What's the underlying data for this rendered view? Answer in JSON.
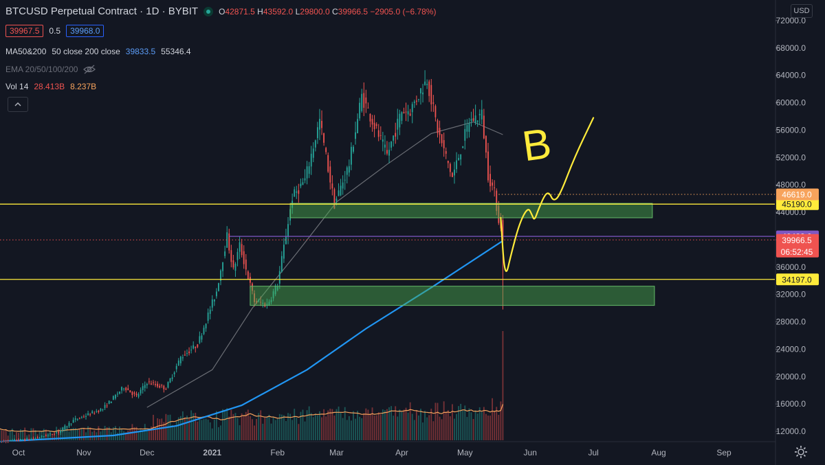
{
  "header": {
    "title": "BTCUSD Perpetual Contract · 1D · BYBIT",
    "open_label": "O",
    "open": "42871.5",
    "high_label": "H",
    "high": "43592.0",
    "low_label": "L",
    "low": "29800.0",
    "close_label": "C",
    "close": "39966.5",
    "change": "−2905.0 (−6.78%)",
    "bid": "39967.5",
    "spread": "0.5",
    "ask": "39968.0"
  },
  "indicators": {
    "ma_title": "MA50&200",
    "ma_params": "50 close 200 close",
    "ma_value1": "39833.5",
    "ma_value2": "55346.4",
    "ema_title": "EMA 20/50/100/200",
    "vol_title": "Vol 14",
    "vol_value1": "28.413B",
    "vol_value2": "8.237B"
  },
  "currency_label": "USD",
  "colors": {
    "background": "#131722",
    "up": "#26a69a",
    "down": "#ef5350",
    "ma50": "#6b6e75",
    "ma200": "#2196f3",
    "annotation": "#ffeb3b",
    "zone_fill": "#4caf50",
    "level_purple": "#7e57c2",
    "vol_ma": "#f7a35c"
  },
  "chart_data": {
    "type": "candlestick",
    "symbol": "BTCUSD",
    "interval": "1D",
    "exchange": "BYBIT",
    "ylim": [
      10600,
      74000
    ],
    "y_ticks": [
      72000,
      68000,
      64000,
      60000,
      56000,
      52000,
      48000,
      44000,
      40000,
      36000,
      32000,
      28000,
      24000,
      20000,
      16000,
      12000
    ],
    "y_tick_labels": [
      "72000.0",
      "68000.0",
      "64000.0",
      "60000.0",
      "56000.0",
      "52000.0",
      "48000.0",
      "44000.0",
      "40000.0",
      "36000.0",
      "32000.0",
      "28000.0",
      "24000.0",
      "20000.0",
      "16000.0",
      "12000.0"
    ],
    "x_labels": [
      "Oct",
      "Nov",
      "Dec",
      "2021",
      "Feb",
      "Mar",
      "Apr",
      "May",
      "Jun",
      "Jul",
      "Aug",
      "Sep"
    ],
    "x_label_dates": [
      "2020-10-01",
      "2020-11-01",
      "2020-12-01",
      "2021-01-01",
      "2021-02-01",
      "2021-03-01",
      "2021-04-01",
      "2021-05-01",
      "2021-06-01",
      "2021-07-01",
      "2021-08-01",
      "2021-09-01"
    ],
    "price_path": [
      [
        "2020-09-22",
        10500
      ],
      [
        "2020-10-08",
        10900
      ],
      [
        "2020-10-20",
        11900
      ],
      [
        "2020-10-27",
        13600
      ],
      [
        "2020-11-10",
        15300
      ],
      [
        "2020-11-20",
        18500
      ],
      [
        "2020-11-26",
        17100
      ],
      [
        "2020-12-01",
        19200
      ],
      [
        "2020-12-10",
        18300
      ],
      [
        "2020-12-17",
        22800
      ],
      [
        "2020-12-25",
        24700
      ],
      [
        "2021-01-03",
        32500
      ],
      [
        "2021-01-08",
        40500
      ],
      [
        "2021-01-11",
        35500
      ],
      [
        "2021-01-14",
        39200
      ],
      [
        "2021-01-21",
        31000
      ],
      [
        "2021-01-27",
        30500
      ],
      [
        "2021-02-01",
        33500
      ],
      [
        "2021-02-08",
        46200
      ],
      [
        "2021-02-14",
        48700
      ],
      [
        "2021-02-21",
        57400
      ],
      [
        "2021-02-28",
        45200
      ],
      [
        "2021-03-07",
        51000
      ],
      [
        "2021-03-13",
        61000
      ],
      [
        "2021-03-25",
        52300
      ],
      [
        "2021-04-01",
        58800
      ],
      [
        "2021-04-05",
        58900
      ],
      [
        "2021-04-13",
        63500
      ],
      [
        "2021-04-18",
        56000
      ],
      [
        "2021-04-25",
        49100
      ],
      [
        "2021-05-03",
        57300
      ],
      [
        "2021-05-09",
        58300
      ],
      [
        "2021-05-12",
        49500
      ],
      [
        "2021-05-15",
        46800
      ],
      [
        "2021-05-17",
        43000
      ],
      [
        "2021-05-19",
        39966.5
      ]
    ],
    "ma50_path": [
      [
        "2020-12-01",
        15500
      ],
      [
        "2021-01-01",
        21000
      ],
      [
        "2021-01-20",
        30000
      ],
      [
        "2021-02-10",
        38000
      ],
      [
        "2021-03-01",
        45500
      ],
      [
        "2021-03-25",
        51000
      ],
      [
        "2021-04-15",
        55500
      ],
      [
        "2021-05-05",
        57200
      ],
      [
        "2021-05-19",
        55346.4
      ]
    ],
    "ma200_path": [
      [
        "2020-09-22",
        10500
      ],
      [
        "2020-11-15",
        11400
      ],
      [
        "2020-12-15",
        12800
      ],
      [
        "2021-01-15",
        15800
      ],
      [
        "2021-02-15",
        21000
      ],
      [
        "2021-03-15",
        27000
      ],
      [
        "2021-04-15",
        33000
      ],
      [
        "2021-05-19",
        39833.5
      ]
    ],
    "zones": [
      {
        "from": "2021-02-07",
        "to": "2021-07-29",
        "y_low": 43200,
        "y_high": 45300
      },
      {
        "from": "2021-01-19",
        "to": "2021-07-30",
        "y_low": 30400,
        "y_high": 33200
      }
    ],
    "horizontal_levels": [
      {
        "value": 45190.0,
        "label": "45190.0",
        "style": "solid",
        "color": "#ffeb3b"
      },
      {
        "value": 34197.0,
        "label": "34197.0",
        "style": "solid",
        "color": "#ffeb3b"
      },
      {
        "value": 46619.0,
        "label": "46619.0",
        "style": "dotted",
        "color": "#f7a35c",
        "from": "2021-05-17"
      },
      {
        "value": 40482.0,
        "label": "40482.0",
        "style": "solid",
        "color": "#7e57c2",
        "from": "2021-01-09"
      },
      {
        "value": 39966.5,
        "label": "39966.5",
        "style": "dotted",
        "color": "#ef5350",
        "sublabel": "06:52:45"
      }
    ],
    "drawing_path": [
      [
        "2021-05-18",
        43200
      ],
      [
        "2021-05-20",
        34000
      ],
      [
        "2021-05-23",
        38000
      ],
      [
        "2021-05-27",
        42500
      ],
      [
        "2021-05-31",
        44800
      ],
      [
        "2021-06-02",
        43500
      ],
      [
        "2021-06-03",
        42800
      ],
      [
        "2021-06-05",
        44500
      ],
      [
        "2021-06-08",
        46600
      ],
      [
        "2021-06-10",
        46900
      ],
      [
        "2021-06-12",
        45600
      ],
      [
        "2021-06-15",
        46400
      ],
      [
        "2021-06-22",
        52000
      ],
      [
        "2021-07-01",
        57800
      ]
    ],
    "drawing_text": "B",
    "volume_max": 28.413,
    "volume_last": 28.413,
    "volume_ma_last": 8.237
  }
}
